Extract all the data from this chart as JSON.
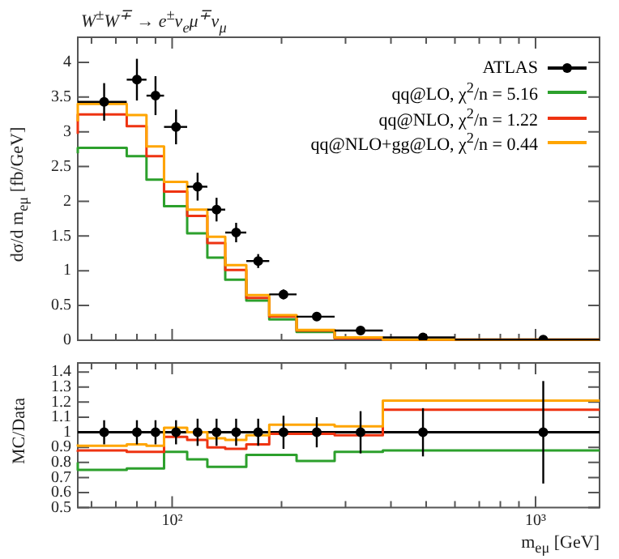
{
  "chart_data": [
    {
      "type": "step",
      "title": "W$^{±}$W$^{∓}$ → e$^{±}$ν$_{e}$μ$^{∓}$ν$_{μ}$",
      "ylabel": "dσ/d m$_{eμ}$ [fb/GeV]",
      "log": "x",
      "xlim": [
        55,
        1500
      ],
      "ylim": [
        0,
        4.36
      ],
      "tick_labels": "y",
      "legend": "top right",
      "xticks": [
        {
          "value": 60,
          "label": null
        },
        {
          "value": 70,
          "label": null
        },
        {
          "value": 80,
          "label": null
        },
        {
          "value": 90,
          "label": null
        },
        {
          "value": 100,
          "label": null
        },
        {
          "value": 200,
          "label": null
        },
        {
          "value": 300,
          "label": null
        },
        {
          "value": 400,
          "label": null
        },
        {
          "value": 500,
          "label": null
        },
        {
          "value": 600,
          "label": null
        },
        {
          "value": 700,
          "label": null
        },
        {
          "value": 800,
          "label": null
        },
        {
          "value": 900,
          "label": null
        },
        {
          "value": 1000,
          "label": null
        }
      ],
      "yticks": [
        0,
        0.5,
        1,
        1.5,
        2,
        2.5,
        3,
        3.5,
        4
      ],
      "x": [
        65,
        80,
        90,
        102.5,
        117.5,
        132.5,
        150,
        172.5,
        202.5,
        250,
        330,
        490,
        1050
      ],
      "series": [
        {
          "name": "ATLAS",
          "type": "scatter",
          "marker": "circle",
          "color": "#000000",
          "values": [
            3.43,
            3.75,
            3.52,
            3.07,
            2.21,
            1.88,
            1.55,
            1.14,
            0.66,
            0.34,
            0.14,
            0.04,
            0.01
          ],
          "errors": [
            0.27,
            0.3,
            0.28,
            0.25,
            0.2,
            0.17,
            0.14,
            0.1,
            0.07,
            0.03,
            0.02,
            null,
            null
          ],
          "xerrors": [
            10,
            5,
            5,
            7.5,
            7.5,
            7.5,
            10,
            12.5,
            17.5,
            30,
            50,
            110,
            450
          ]
        },
        {
          "name": "qq@LO, χ$^{2}$/n = 5.16",
          "color": "#2ca02c",
          "x": [
            55,
            75,
            85,
            95,
            110,
            125,
            140,
            160,
            185,
            220,
            280,
            380
          ],
          "values": [
            2.69,
            2.77,
            2.65,
            2.31,
            1.93,
            1.54,
            1.19,
            0.87,
            0.57,
            0.3,
            0.12,
            0.03
          ]
        },
        {
          "name": "qq@NLO, χ$^{2}$/n = 1.22",
          "color": "#ee3311",
          "x": [
            55,
            75,
            85,
            95,
            110,
            125,
            140,
            160,
            185,
            220,
            280,
            380,
            600,
            1500
          ],
          "values": [
            2.97,
            3.25,
            3.08,
            2.65,
            2.14,
            1.79,
            1.4,
            1.01,
            0.61,
            0.34,
            0.14,
            0.03,
            0.01,
            0.01
          ]
        },
        {
          "name": "qq@NLO+gg@LO, χ$^{2}$/n = 0.44",
          "color": "#ffa500",
          "x": [
            55,
            75,
            85,
            95,
            110,
            125,
            140,
            160,
            185,
            220,
            280,
            380,
            600,
            1500
          ],
          "values": [
            3.15,
            3.4,
            3.24,
            2.79,
            2.28,
            1.88,
            1.49,
            1.08,
            0.65,
            0.36,
            0.15,
            0.04,
            0.01,
            0.01
          ]
        }
      ]
    },
    {
      "type": "step",
      "ylabel": "MC/Data",
      "xlabel": "m$_{eμ}$ [GeV]",
      "log": "x",
      "xlim": [
        55,
        1500
      ],
      "ylim": [
        0.5,
        1.46
      ],
      "xticks": [
        {
          "value": 60,
          "label": null
        },
        {
          "value": 70,
          "label": null
        },
        {
          "value": 80,
          "label": null
        },
        {
          "value": 90,
          "label": null
        },
        {
          "value": 100,
          "label": "10²"
        },
        {
          "value": 200,
          "label": null
        },
        {
          "value": 300,
          "label": null
        },
        {
          "value": 400,
          "label": null
        },
        {
          "value": 500,
          "label": null
        },
        {
          "value": 600,
          "label": null
        },
        {
          "value": 700,
          "label": null
        },
        {
          "value": 800,
          "label": null
        },
        {
          "value": 900,
          "label": null
        },
        {
          "value": 1000,
          "label": "10³"
        }
      ],
      "yticks": [
        0.5,
        0.6,
        0.7,
        0.8,
        0.9,
        1,
        1.1,
        1.2,
        1.3,
        1.4
      ],
      "x": [
        65,
        80,
        90,
        102.5,
        117.5,
        132.5,
        150,
        172.5,
        202.5,
        250,
        330,
        490,
        1050
      ],
      "ref_lines": [
        {
          "axis": "y",
          "value": 1,
          "color": "#000000"
        }
      ],
      "series": [
        {
          "type": "scatter",
          "marker": "circle",
          "color": "#000000",
          "values": [
            1,
            1,
            1,
            1,
            1,
            1,
            1,
            1,
            1,
            1,
            1,
            1,
            1
          ],
          "errors": [
            0.08,
            0.08,
            0.08,
            0.08,
            0.09,
            0.09,
            0.09,
            0.09,
            0.11,
            0.1,
            0.14,
            0.16,
            0.34
          ]
        },
        {
          "color": "#2ca02c",
          "x": [
            55,
            75,
            85,
            95,
            110,
            125,
            140,
            160,
            185,
            220,
            280,
            380,
            600,
            1500
          ],
          "values": [
            0.8,
            0.75,
            0.76,
            0.76,
            0.87,
            0.82,
            0.77,
            0.77,
            0.85,
            0.85,
            0.81,
            0.87,
            0.88,
            0.88
          ]
        },
        {
          "color": "#ee3311",
          "x": [
            55,
            75,
            85,
            95,
            110,
            125,
            140,
            160,
            185,
            220,
            280,
            380,
            600,
            1500
          ],
          "values": [
            0.87,
            0.88,
            0.87,
            0.87,
            0.97,
            0.95,
            0.9,
            0.89,
            0.92,
            0.99,
            0.99,
            0.98,
            1.15,
            1.15
          ]
        },
        {
          "color": "#ffa500",
          "x": [
            55,
            75,
            85,
            95,
            110,
            125,
            140,
            160,
            185,
            220,
            280,
            380,
            600,
            1500
          ],
          "values": [
            0.92,
            0.91,
            0.92,
            0.91,
            1.03,
            1,
            0.96,
            0.95,
            0.98,
            1.05,
            1.05,
            1.04,
            1.21,
            1.21
          ]
        }
      ]
    }
  ]
}
